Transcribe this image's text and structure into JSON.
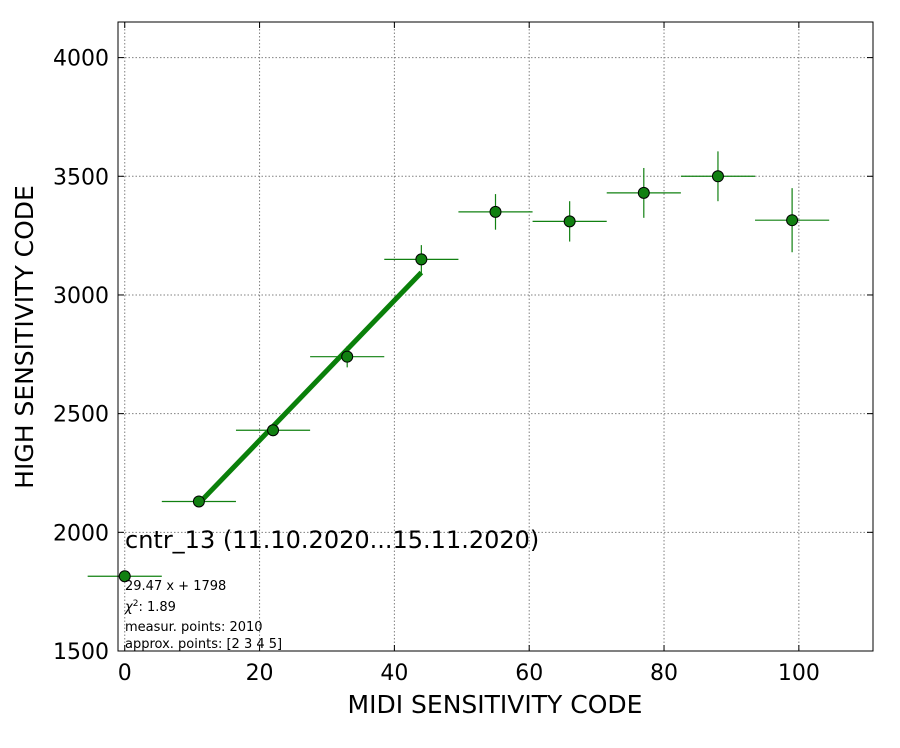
{
  "chart_data": {
    "type": "scatter",
    "xlabel": "MIDI SENSITIVITY CODE",
    "ylabel": "HIGH SENSITIVITY CODE",
    "xlim": [
      -1,
      111
    ],
    "ylim": [
      1500,
      4150
    ],
    "xticks": [
      0,
      20,
      40,
      60,
      80,
      100
    ],
    "yticks": [
      1500,
      2000,
      2500,
      3000,
      3500,
      4000
    ],
    "grid": true,
    "grid_style": "dotted",
    "colors": {
      "marker": "#118011",
      "fit_line": "#0a800a",
      "marker_edge": "#000000",
      "grid": "#808080"
    },
    "series": [
      {
        "points": [
          {
            "x": 0,
            "y": 1815,
            "xerr": 5.5,
            "yerr": 0
          },
          {
            "x": 11,
            "y": 2130,
            "xerr": 5.5,
            "yerr": 10
          },
          {
            "x": 22,
            "y": 2430,
            "xerr": 5.5,
            "yerr": 25
          },
          {
            "x": 33,
            "y": 2740,
            "xerr": 5.5,
            "yerr": 45
          },
          {
            "x": 44,
            "y": 3150,
            "xerr": 5.5,
            "yerr": 60
          },
          {
            "x": 55,
            "y": 3350,
            "xerr": 5.5,
            "yerr": 75
          },
          {
            "x": 66,
            "y": 3310,
            "xerr": 5.5,
            "yerr": 85
          },
          {
            "x": 77,
            "y": 3430,
            "xerr": 5.5,
            "yerr": 105
          },
          {
            "x": 88,
            "y": 3500,
            "xerr": 5.5,
            "yerr": 105
          },
          {
            "x": 99,
            "y": 3315,
            "xerr": 5.5,
            "yerr": 135
          }
        ]
      }
    ],
    "fit": {
      "slope": 29.47,
      "intercept": 1798,
      "x_range": [
        11,
        44
      ]
    },
    "annotation": {
      "title": "cntr_13 (11.10.2020...15.11.2020)",
      "fit_text": "29.47 x + 1798",
      "chi2_text": "1.89",
      "measur_text": "measur. points: 2010",
      "approx_text": "approx. points: [2 3 4 5]"
    }
  }
}
